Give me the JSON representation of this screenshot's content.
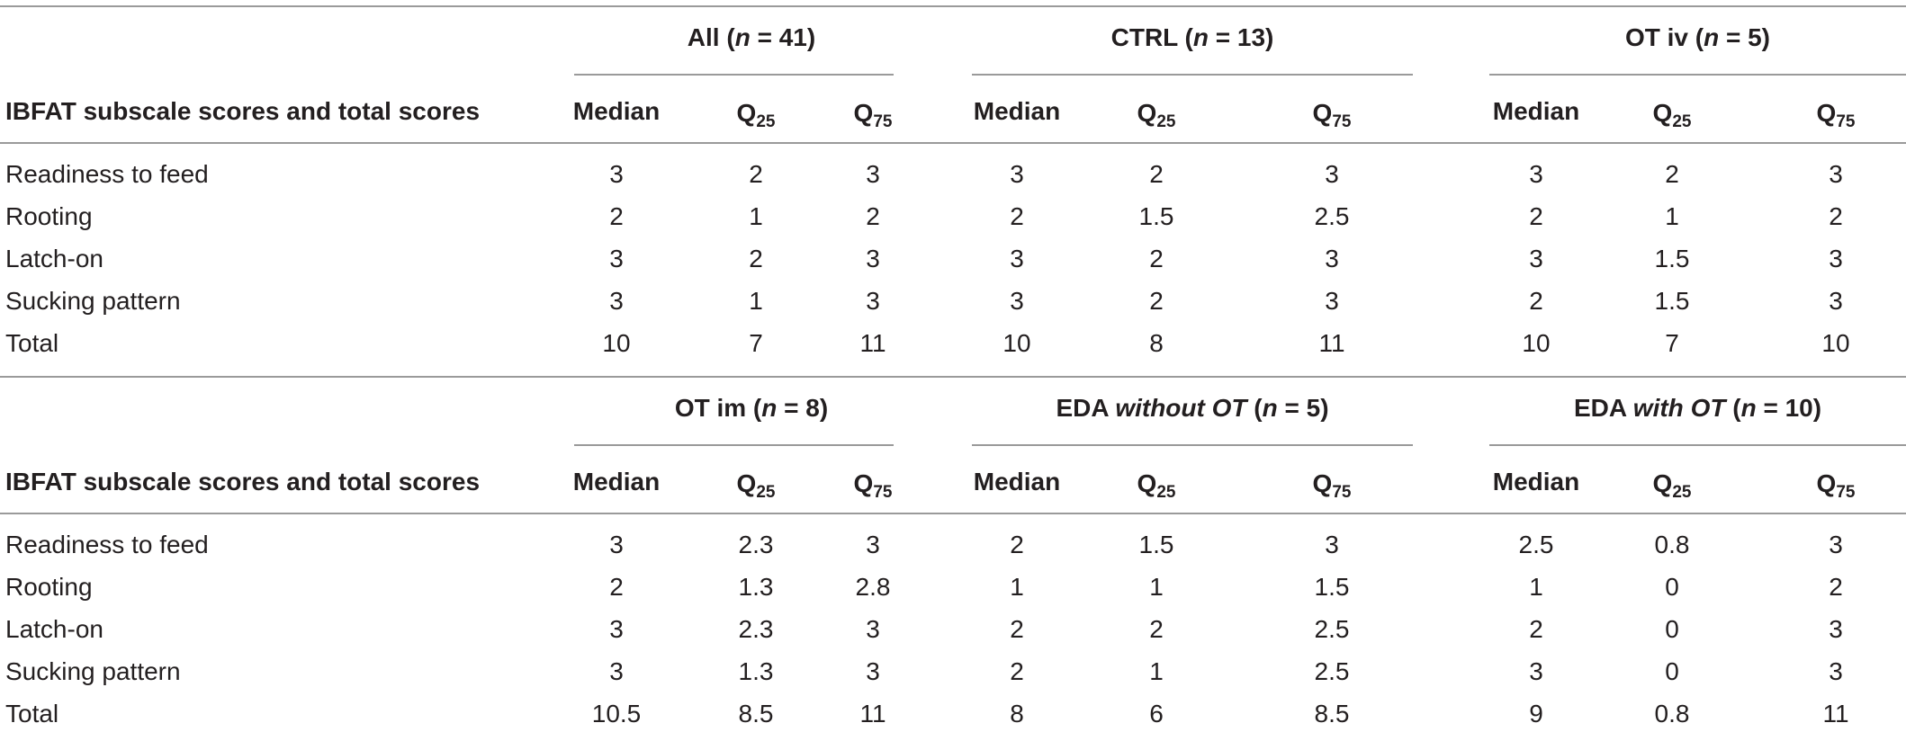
{
  "stub_header": "IBFAT subscale scores and total scores",
  "stat_labels": {
    "median": "Median",
    "q_letter": "Q",
    "q25_sub": "25",
    "q75_sub": "75"
  },
  "sections": [
    {
      "groups": [
        {
          "name": "All (",
          "n_symbol": "n",
          "n_text": " = 41)"
        },
        {
          "name": "CTRL (",
          "n_symbol": "n",
          "n_text": " = 13)"
        },
        {
          "name": "OT iv (",
          "n_symbol": "n",
          "n_text": " = 5)"
        }
      ],
      "rows": [
        {
          "label": "Readiness to feed",
          "values": [
            "3",
            "2",
            "3",
            "3",
            "2",
            "3",
            "3",
            "2",
            "3"
          ]
        },
        {
          "label": "Rooting",
          "values": [
            "2",
            "1",
            "2",
            "2",
            "1.5",
            "2.5",
            "2",
            "1",
            "2"
          ]
        },
        {
          "label": "Latch-on",
          "values": [
            "3",
            "2",
            "3",
            "3",
            "2",
            "3",
            "3",
            "1.5",
            "3"
          ]
        },
        {
          "label": "Sucking pattern",
          "values": [
            "3",
            "1",
            "3",
            "3",
            "2",
            "3",
            "2",
            "1.5",
            "3"
          ]
        },
        {
          "label": "Total",
          "values": [
            "10",
            "7",
            "11",
            "10",
            "8",
            "11",
            "10",
            "7",
            "10"
          ]
        }
      ]
    },
    {
      "groups": [
        {
          "name": "OT im (",
          "n_symbol": "n",
          "n_text": " = 8)"
        },
        {
          "name": "EDA ",
          "name_italic": "without OT",
          "name_after": " (",
          "n_symbol": "n",
          "n_text": " = 5)"
        },
        {
          "name": "EDA ",
          "name_italic": "with OT",
          "name_after": " (",
          "n_symbol": "n",
          "n_text": " = 10)"
        }
      ],
      "rows": [
        {
          "label": "Readiness to feed",
          "values": [
            "3",
            "2.3",
            "3",
            "2",
            "1.5",
            "3",
            "2.5",
            "0.8",
            "3"
          ]
        },
        {
          "label": "Rooting",
          "values": [
            "2",
            "1.3",
            "2.8",
            "1",
            "1",
            "1.5",
            "1",
            "0",
            "2"
          ]
        },
        {
          "label": "Latch-on",
          "values": [
            "3",
            "2.3",
            "3",
            "2",
            "2",
            "2.5",
            "2",
            "0",
            "3"
          ]
        },
        {
          "label": "Sucking pattern",
          "values": [
            "3",
            "1.3",
            "3",
            "2",
            "1",
            "2.5",
            "3",
            "0",
            "3"
          ]
        },
        {
          "label": "Total",
          "values": [
            "10.5",
            "8.5",
            "11",
            "8",
            "6",
            "8.5",
            "9",
            "0.8",
            "11"
          ]
        }
      ]
    }
  ]
}
